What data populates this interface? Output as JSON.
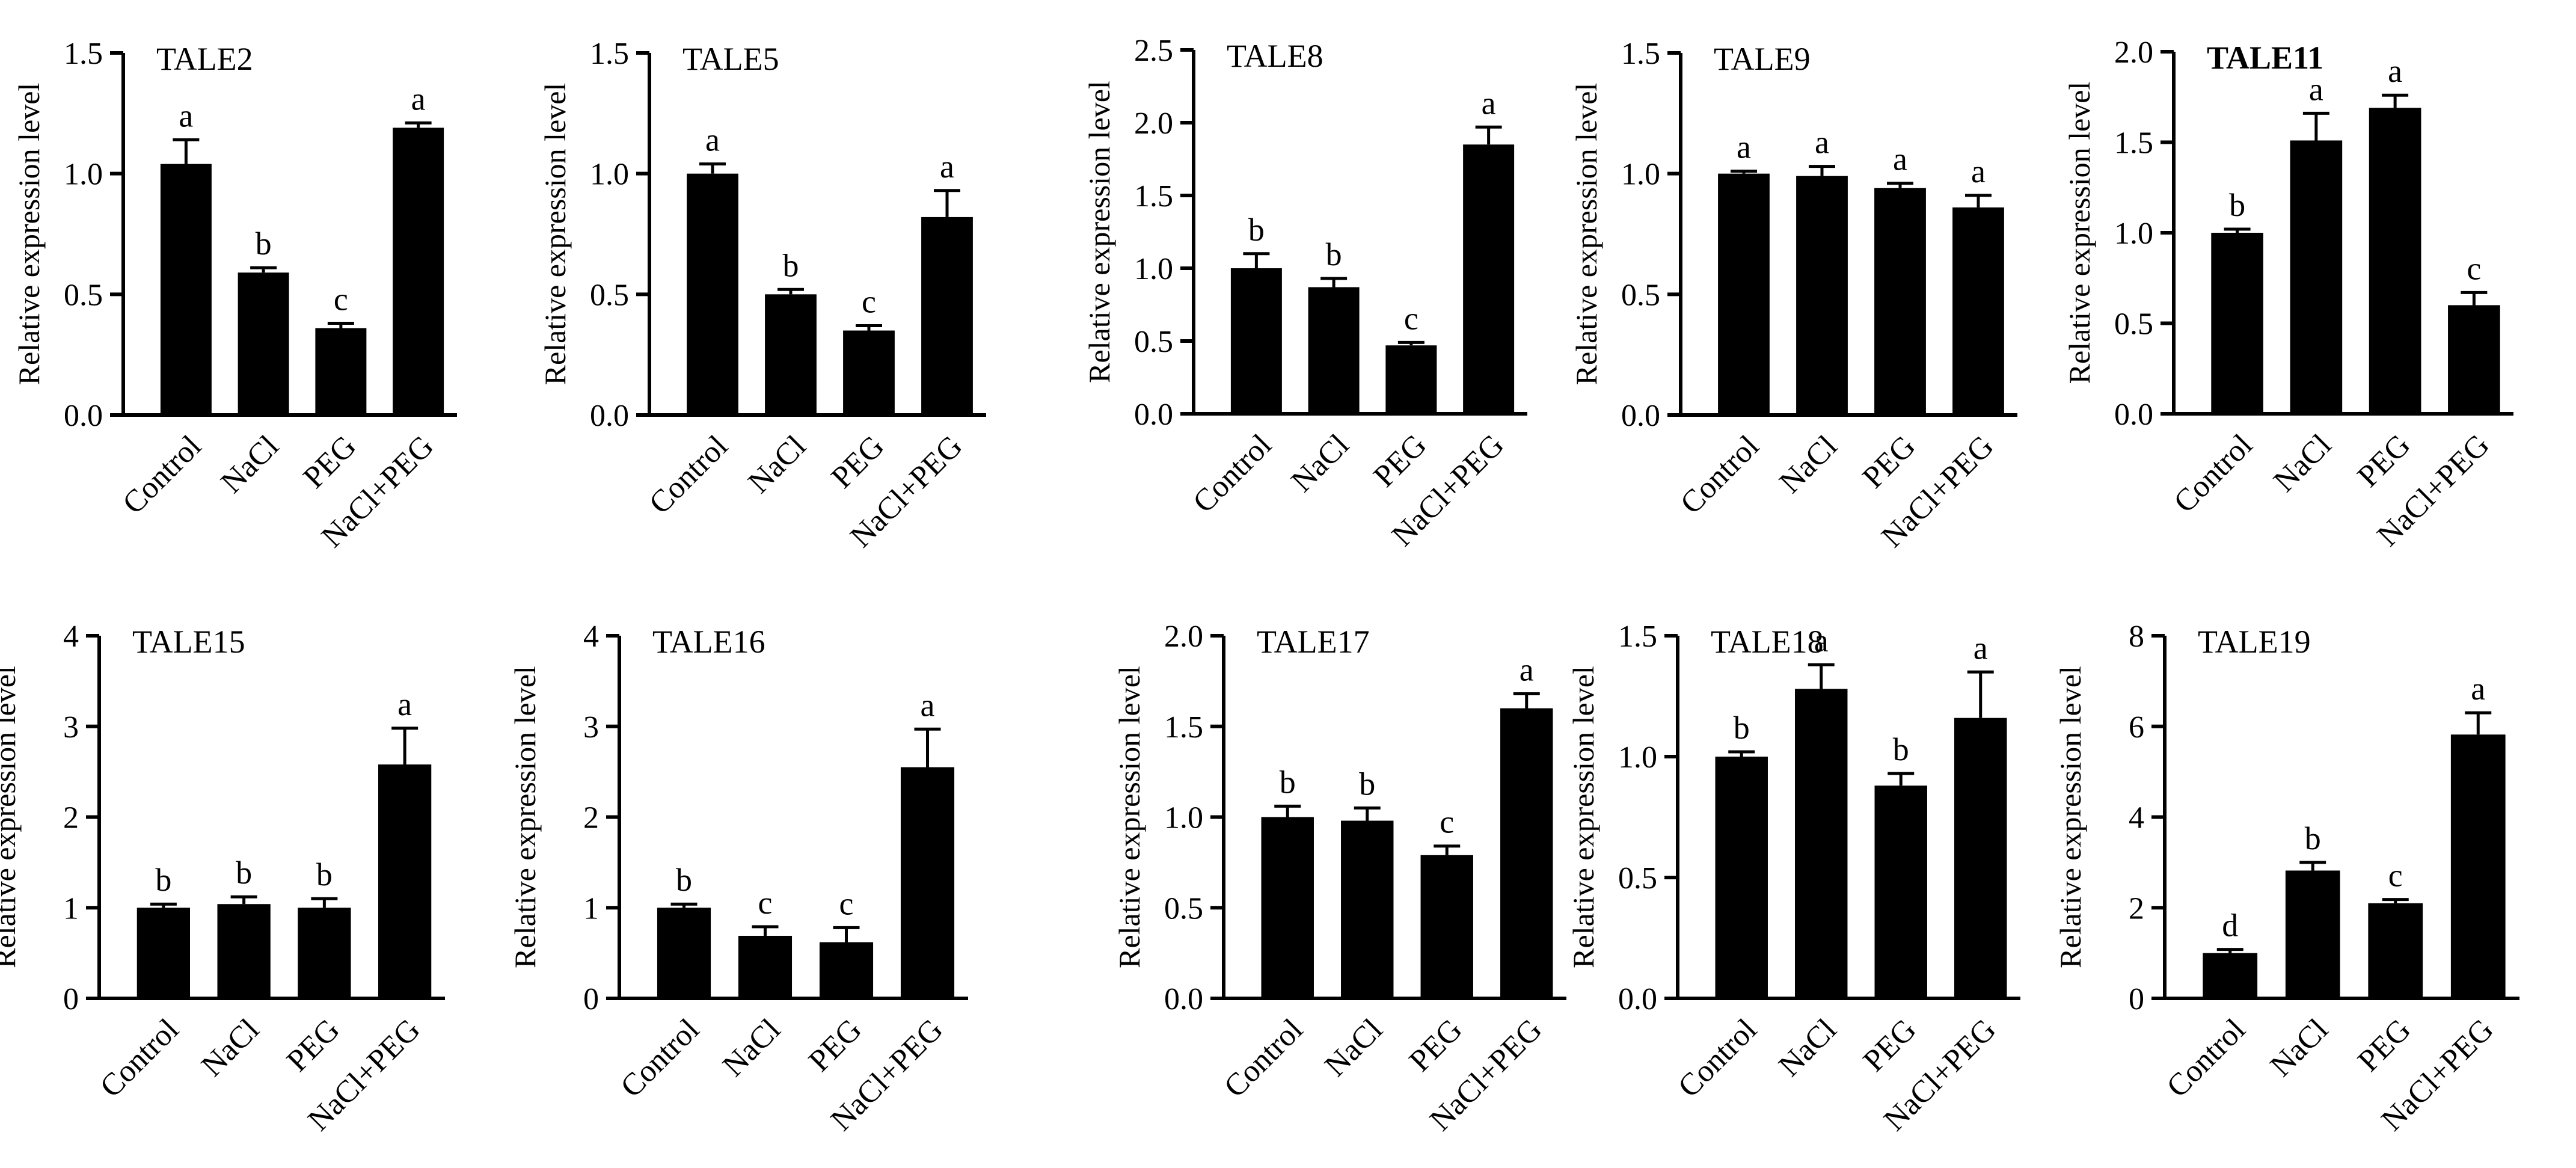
{
  "figure": {
    "ylabel": "Relative expression level",
    "categories": [
      "Control",
      "NaCl",
      "PEG",
      "NaCl+PEG"
    ]
  },
  "chart_data": [
    {
      "type": "bar",
      "title": "TALE2",
      "title_bold": false,
      "categories": [
        "Control",
        "NaCl",
        "PEG",
        "NaCl+PEG"
      ],
      "values": [
        1.04,
        0.59,
        0.36,
        1.19
      ],
      "errors": [
        0.1,
        0.02,
        0.02,
        0.02
      ],
      "letters": [
        "a",
        "b",
        "c",
        "a"
      ],
      "ylabel": "Relative expression level",
      "ylim": [
        0,
        1.5
      ],
      "yticks": [
        0,
        0.5,
        1.0,
        1.5
      ],
      "ytick_labels": [
        "0.0",
        "0.5",
        "1.0",
        "1.5"
      ]
    },
    {
      "type": "bar",
      "title": "TALE5",
      "title_bold": false,
      "categories": [
        "Control",
        "NaCl",
        "PEG",
        "NaCl+PEG"
      ],
      "values": [
        1.0,
        0.5,
        0.35,
        0.82
      ],
      "errors": [
        0.04,
        0.02,
        0.02,
        0.11
      ],
      "letters": [
        "a",
        "b",
        "c",
        "a"
      ],
      "ylabel": "Relative expression level",
      "ylim": [
        0,
        1.5
      ],
      "yticks": [
        0,
        0.5,
        1.0,
        1.5
      ],
      "ytick_labels": [
        "0.0",
        "0.5",
        "1.0",
        "1.5"
      ]
    },
    {
      "type": "bar",
      "title": "TALE8",
      "title_bold": false,
      "categories": [
        "Control",
        "NaCl",
        "PEG",
        "NaCl+PEG"
      ],
      "values": [
        1.0,
        0.87,
        0.47,
        1.85
      ],
      "errors": [
        0.1,
        0.06,
        0.02,
        0.12
      ],
      "letters": [
        "b",
        "b",
        "c",
        "a"
      ],
      "ylabel": "Relative expression level",
      "ylim": [
        0,
        2.5
      ],
      "yticks": [
        0,
        0.5,
        1.0,
        1.5,
        2.0,
        2.5
      ],
      "ytick_labels": [
        "0.0",
        "0.5",
        "1.0",
        "1.5",
        "2.0",
        "2.5"
      ]
    },
    {
      "type": "bar",
      "title": "TALE9",
      "title_bold": false,
      "categories": [
        "Control",
        "NaCl",
        "PEG",
        "NaCl+PEG"
      ],
      "values": [
        1.0,
        0.99,
        0.94,
        0.86
      ],
      "errors": [
        0.01,
        0.04,
        0.02,
        0.05
      ],
      "letters": [
        "a",
        "a",
        "a",
        "a"
      ],
      "ylabel": "Relative expression level",
      "ylim": [
        0,
        1.5
      ],
      "yticks": [
        0,
        0.5,
        1.0,
        1.5
      ],
      "ytick_labels": [
        "0.0",
        "0.5",
        "1.0",
        "1.5"
      ]
    },
    {
      "type": "bar",
      "title": "TALE11",
      "title_bold": true,
      "categories": [
        "Control",
        "NaCl",
        "PEG",
        "NaCl+PEG"
      ],
      "values": [
        1.0,
        1.51,
        1.69,
        0.6
      ],
      "errors": [
        0.02,
        0.15,
        0.07,
        0.07
      ],
      "letters": [
        "b",
        "a",
        "a",
        "c"
      ],
      "ylabel": "Relative expression level",
      "ylim": [
        0,
        2.0
      ],
      "yticks": [
        0,
        0.5,
        1.0,
        1.5,
        2.0
      ],
      "ytick_labels": [
        "0.0",
        "0.5",
        "1.0",
        "1.5",
        "2.0"
      ]
    },
    {
      "type": "bar",
      "title": "TALE15",
      "title_bold": false,
      "categories": [
        "Control",
        "NaCl",
        "PEG",
        "NaCl+PEG"
      ],
      "values": [
        1.0,
        1.04,
        1.0,
        2.58
      ],
      "errors": [
        0.04,
        0.08,
        0.1,
        0.4
      ],
      "letters": [
        "b",
        "b",
        "b",
        "a"
      ],
      "ylabel": "Relative expression level",
      "ylim": [
        0,
        4
      ],
      "yticks": [
        0,
        1,
        2,
        3,
        4
      ],
      "ytick_labels": [
        "0",
        "1",
        "2",
        "3",
        "4"
      ]
    },
    {
      "type": "bar",
      "title": "TALE16",
      "title_bold": false,
      "categories": [
        "Control",
        "NaCl",
        "PEG",
        "NaCl+PEG"
      ],
      "values": [
        1.0,
        0.69,
        0.62,
        2.55
      ],
      "errors": [
        0.04,
        0.1,
        0.16,
        0.42
      ],
      "letters": [
        "b",
        "c",
        "c",
        "a"
      ],
      "ylabel": "Relative expression level",
      "ylim": [
        0,
        4
      ],
      "yticks": [
        0,
        1,
        2,
        3,
        4
      ],
      "ytick_labels": [
        "0",
        "1",
        "2",
        "3",
        "4"
      ]
    },
    {
      "type": "bar",
      "title": "TALE17",
      "title_bold": false,
      "categories": [
        "Control",
        "NaCl",
        "PEG",
        "NaCl+PEG"
      ],
      "values": [
        1.0,
        0.98,
        0.79,
        1.6
      ],
      "errors": [
        0.06,
        0.07,
        0.05,
        0.08
      ],
      "letters": [
        "b",
        "b",
        "c",
        "a"
      ],
      "ylabel": "Relative expression level",
      "ylim": [
        0,
        2.0
      ],
      "yticks": [
        0,
        0.5,
        1.0,
        1.5,
        2.0
      ],
      "ytick_labels": [
        "0.0",
        "0.5",
        "1.0",
        "1.5",
        "2.0"
      ]
    },
    {
      "type": "bar",
      "title": "TALE18",
      "title_bold": false,
      "categories": [
        "Control",
        "NaCl",
        "PEG",
        "NaCl+PEG"
      ],
      "values": [
        1.0,
        1.28,
        0.88,
        1.16
      ],
      "errors": [
        0.02,
        0.1,
        0.05,
        0.19
      ],
      "letters": [
        "b",
        "a",
        "b",
        "a"
      ],
      "ylabel": "Relative expression level",
      "ylim": [
        0,
        1.5
      ],
      "yticks": [
        0,
        0.5,
        1.0,
        1.5
      ],
      "ytick_labels": [
        "0.0",
        "0.5",
        "1.0",
        "1.5"
      ]
    },
    {
      "type": "bar",
      "title": "TALE19",
      "title_bold": false,
      "categories": [
        "Control",
        "NaCl",
        "PEG",
        "NaCl+PEG"
      ],
      "values": [
        1.0,
        2.82,
        2.1,
        5.82
      ],
      "errors": [
        0.08,
        0.18,
        0.08,
        0.48
      ],
      "letters": [
        "d",
        "b",
        "c",
        "a"
      ],
      "ylabel": "Relative expression level",
      "ylim": [
        0,
        8
      ],
      "yticks": [
        0,
        2,
        4,
        6,
        8
      ],
      "ytick_labels": [
        "0",
        "2",
        "4",
        "6",
        "8"
      ]
    }
  ]
}
